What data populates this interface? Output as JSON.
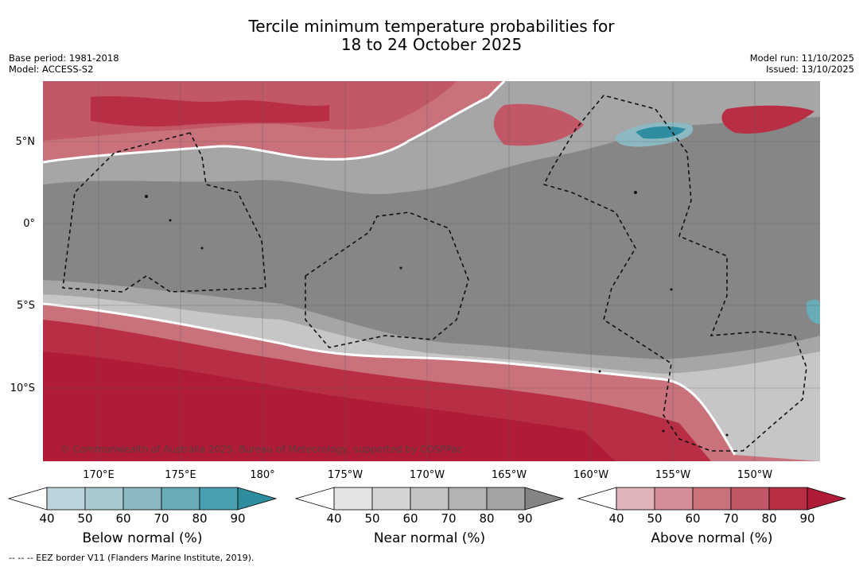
{
  "title": {
    "line1": "Tercile minimum temperature probabilities for",
    "line2": "18 to 24 October 2025"
  },
  "meta": {
    "base_period": "Base period: 1981-2018",
    "model": "Model: ACCESS-S2",
    "model_run": "Model run: 11/10/2025",
    "issued": "Issued: 13/10/2025"
  },
  "axes": {
    "lat_labels": [
      "5°N",
      "0°",
      "5°S",
      "10°S"
    ],
    "lon_labels": [
      "170°E",
      "175°E",
      "180°",
      "175°W",
      "170°W",
      "165°W",
      "160°W",
      "155°W",
      "150°W"
    ]
  },
  "copyright": "© Commonwealth of Australia 2025, Bureau of Meteorology, supported by COSPPac",
  "colorbars": [
    {
      "title": "Below normal (%)",
      "ticks": [
        "40",
        "50",
        "60",
        "70",
        "80",
        "90"
      ],
      "colors": [
        "#ffffff",
        "#bdd4dc",
        "#a8c9d0",
        "#8cb8c2",
        "#6aabb8",
        "#4a9fb0",
        "#2e8ea0"
      ]
    },
    {
      "title": "Near normal (%)",
      "ticks": [
        "40",
        "50",
        "60",
        "70",
        "80",
        "90"
      ],
      "colors": [
        "#ffffff",
        "#e3e3e3",
        "#d4d4d4",
        "#c4c4c4",
        "#b3b3b3",
        "#a3a3a3",
        "#848484"
      ]
    },
    {
      "title": "Above normal (%)",
      "ticks": [
        "40",
        "50",
        "60",
        "70",
        "80",
        "90"
      ],
      "colors": [
        "#ffffff",
        "#e0b3b9",
        "#d48e97",
        "#c9727c",
        "#c25867",
        "#b82f45",
        "#b01c38"
      ]
    }
  ],
  "footnote": "--  --  -- EEZ border V11 (Flanders Marine Institute, 2019)."
}
